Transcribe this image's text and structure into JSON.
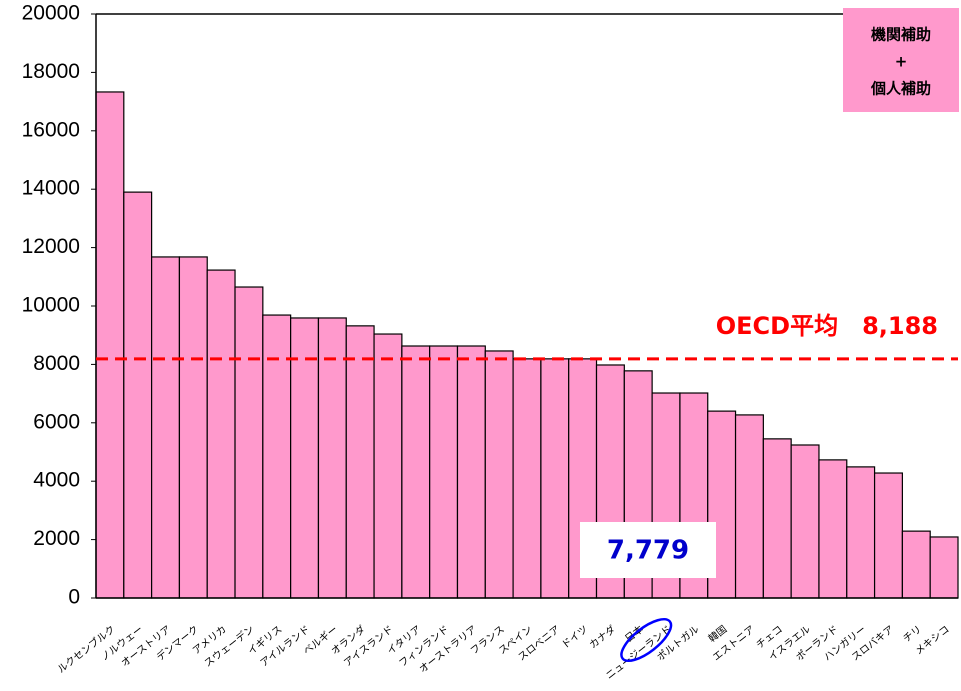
{
  "chart_data": {
    "type": "bar",
    "categories": [
      "ルクセンブルク",
      "ノルウェー",
      "オーストリア",
      "デンマーク",
      "アメリカ",
      "スウェーデン",
      "イギリス",
      "アイルランド",
      "ベルギー",
      "オランダ",
      "アイスランド",
      "イタリア",
      "フィンランド",
      "オーストラリア",
      "フランス",
      "スペイン",
      "スロベニア",
      "ドイツ",
      "カナダ",
      "日本",
      "ニュージーランド",
      "ポルトガル",
      "韓国",
      "エストニア",
      "チェコ",
      "イスラエル",
      "ポーランド",
      "ハンガリー",
      "スロバキア",
      "チリ",
      "メキシコ"
    ],
    "values": [
      17330,
      13900,
      11680,
      11680,
      11230,
      10650,
      9690,
      9590,
      9590,
      9320,
      9040,
      8630,
      8630,
      8630,
      8460,
      8190,
      8190,
      8190,
      7980,
      7779,
      7020,
      7020,
      6400,
      6270,
      5450,
      5240,
      4730,
      4490,
      4280,
      2290,
      2090
    ],
    "value_labels": [
      null,
      null,
      null,
      null,
      null,
      null,
      null,
      null,
      null,
      null,
      null,
      null,
      null,
      null,
      null,
      null,
      null,
      null,
      null,
      "7,779",
      null,
      null,
      null,
      null,
      null,
      null,
      null,
      null,
      null,
      null,
      null
    ],
    "color": "#ff99cc",
    "ylim": [
      0,
      20000
    ],
    "yticks": [
      0,
      2000,
      4000,
      6000,
      8000,
      10000,
      12000,
      14000,
      16000,
      18000,
      20000
    ],
    "reference_line": {
      "value": 8188,
      "label": "OECD平均　8,188",
      "color": "#ff0000"
    },
    "legend_box": {
      "lines": [
        "機関補助",
        "+",
        "個人補助"
      ],
      "color": "#ff99cc"
    }
  }
}
